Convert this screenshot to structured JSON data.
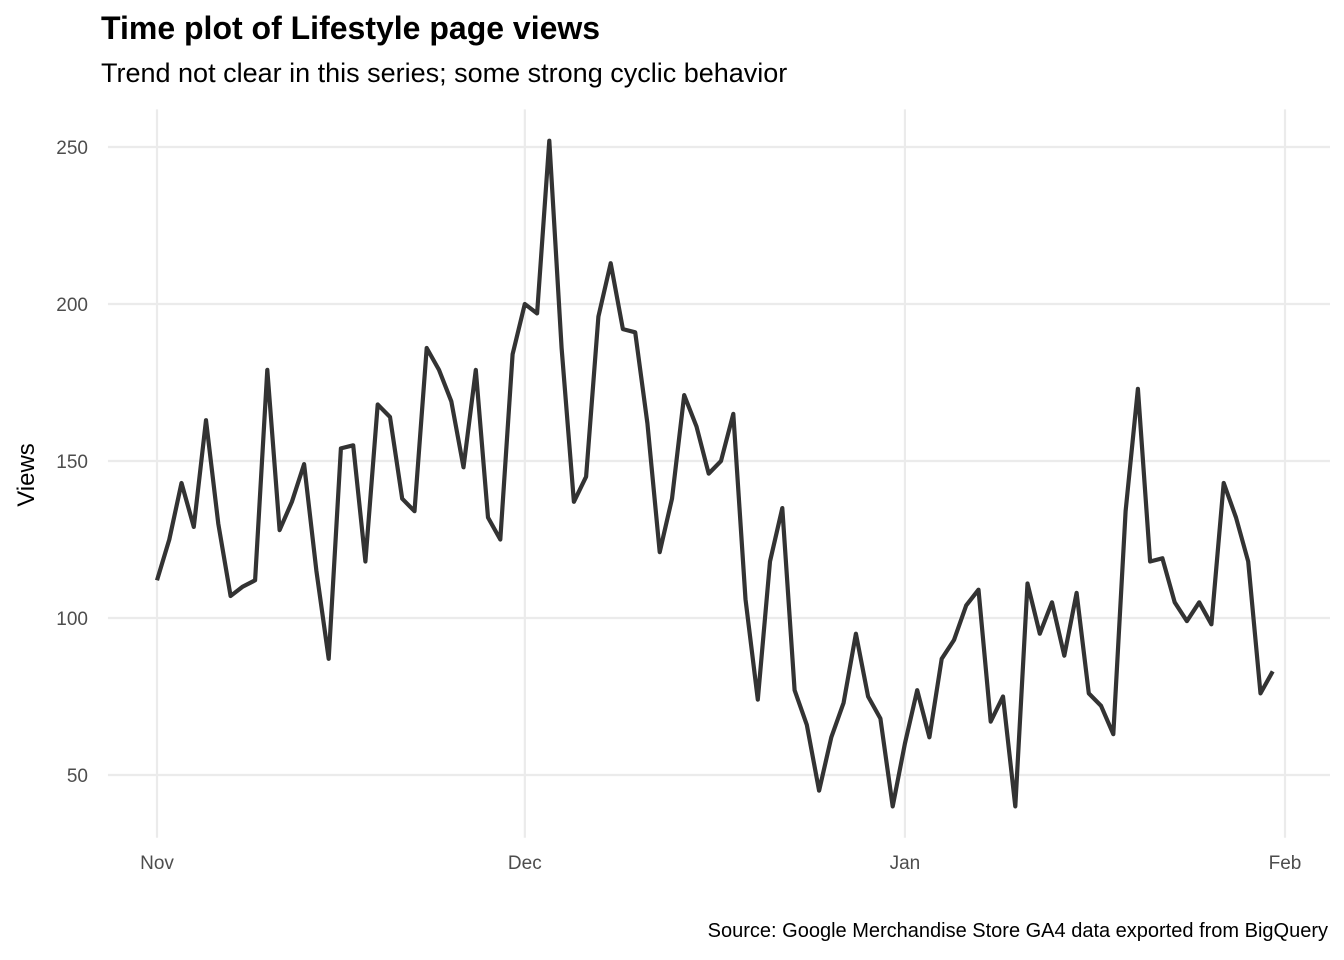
{
  "chart_data": {
    "type": "line",
    "title": "Time plot of Lifestyle page views",
    "subtitle": "Trend not clear in this series; some strong cyclic behavior",
    "caption": "Source: Google Merchandise Store GA4 data exported from BigQuery",
    "xlabel": "",
    "ylabel": "Views",
    "x_start": "Nov 1",
    "x_end": "Jan 31",
    "x_ticks": [
      {
        "label": "Nov",
        "day": 0
      },
      {
        "label": "Dec",
        "day": 30
      },
      {
        "label": "Jan",
        "day": 61
      },
      {
        "label": "Feb",
        "day": 92
      }
    ],
    "y_ticks": [
      50,
      100,
      150,
      200,
      250
    ],
    "ylim": [
      30,
      262
    ],
    "xlim_days": [
      -4,
      95
    ],
    "grid": true,
    "line_color": "#333333",
    "grid_color": "#ebebeb",
    "series": [
      {
        "name": "Views",
        "values": [
          112,
          125,
          143,
          129,
          163,
          130,
          107,
          110,
          112,
          179,
          128,
          137,
          149,
          115,
          87,
          154,
          155,
          118,
          168,
          164,
          138,
          134,
          186,
          179,
          169,
          148,
          179,
          132,
          125,
          184,
          200,
          197,
          252,
          186,
          137,
          145,
          196,
          213,
          192,
          191,
          162,
          121,
          138,
          171,
          161,
          146,
          150,
          165,
          106,
          74,
          118,
          135,
          77,
          66,
          45,
          62,
          73,
          95,
          75,
          68,
          40,
          60,
          77,
          62,
          87,
          93,
          104,
          109,
          67,
          75,
          40,
          111,
          95,
          105,
          88,
          108,
          76,
          72,
          63,
          134,
          173,
          118,
          119,
          105,
          99,
          105,
          98,
          143,
          132,
          118,
          76,
          83
        ]
      }
    ]
  }
}
